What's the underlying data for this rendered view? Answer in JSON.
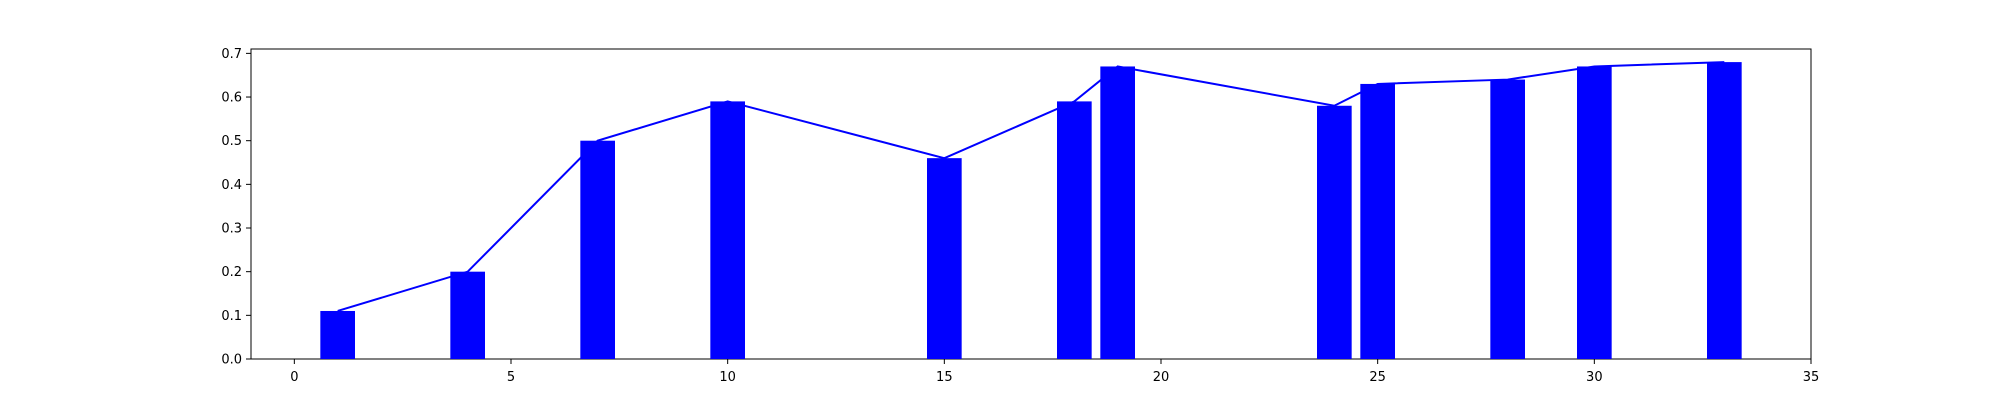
{
  "chart_data": {
    "type": "bar",
    "x": [
      1,
      4,
      7,
      10,
      15,
      18,
      19,
      24,
      25,
      28,
      30,
      33
    ],
    "values": [
      0.11,
      0.2,
      0.5,
      0.59,
      0.46,
      0.59,
      0.67,
      0.58,
      0.63,
      0.64,
      0.67,
      0.68
    ],
    "overlay_line": true,
    "title": "",
    "xlabel": "",
    "ylabel": "",
    "xlim": [
      -1,
      35
    ],
    "ylim": [
      0,
      0.71
    ],
    "xticks": [
      0,
      5,
      10,
      15,
      20,
      25,
      30,
      35
    ],
    "yticks": [
      0.0,
      0.1,
      0.2,
      0.3,
      0.4,
      0.5,
      0.6,
      0.7
    ],
    "xtick_labels": [
      "0",
      "5",
      "10",
      "15",
      "20",
      "25",
      "30",
      "35"
    ],
    "ytick_labels": [
      "0.0",
      "0.1",
      "0.2",
      "0.3",
      "0.4",
      "0.5",
      "0.6",
      "0.7"
    ],
    "bar_width": 0.8,
    "grid": false,
    "legend": "none",
    "colors": {
      "bar": "#0000ff",
      "line": "#0000ff",
      "axis": "#000000"
    }
  }
}
